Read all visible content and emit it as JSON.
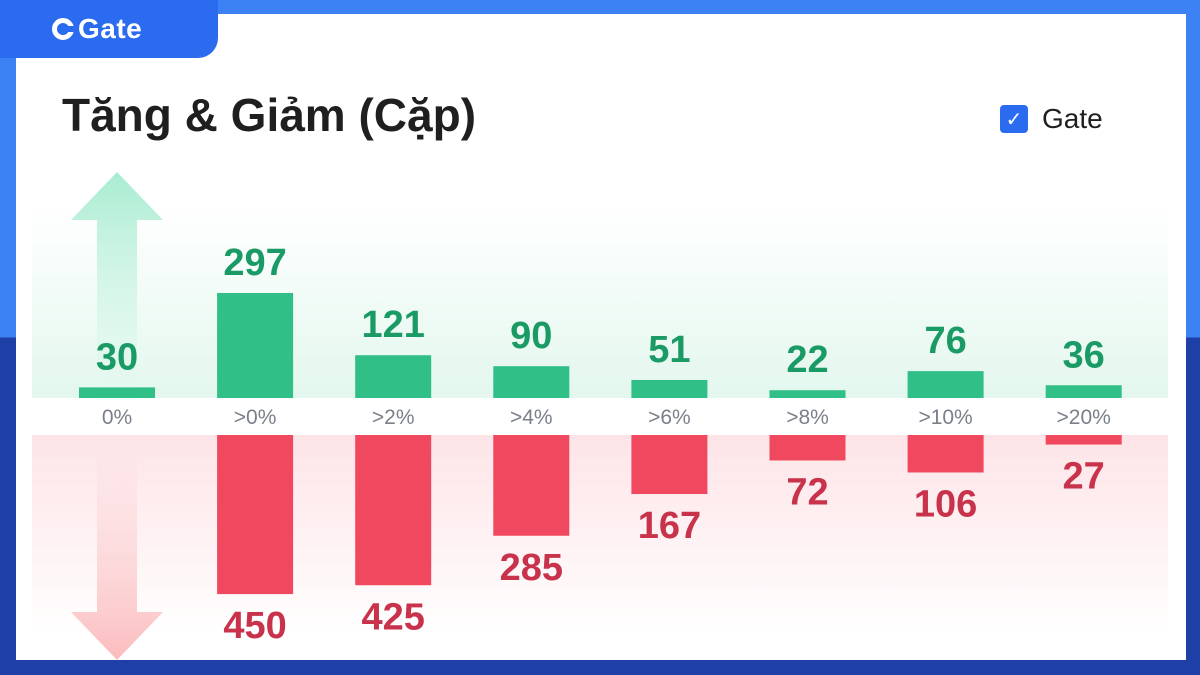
{
  "brand": {
    "name": "Gate"
  },
  "title": "Tăng & Giảm (Cặp)",
  "legend": {
    "label": "Gate",
    "checked": true
  },
  "colors": {
    "up": "#2fbf87",
    "up_text": "#1a9a64",
    "down": "#f0485e",
    "down_text": "#c8324b",
    "brand": "#2a6bf0"
  },
  "chart_data": {
    "type": "bar",
    "categories": [
      "0%",
      ">0%",
      ">2%",
      ">4%",
      ">6%",
      ">8%",
      ">10%",
      ">20%"
    ],
    "series": [
      {
        "values": [
          30,
          297,
          121,
          90,
          51,
          22,
          76,
          36
        ],
        "direction": "up"
      },
      {
        "values": [
          null,
          450,
          425,
          285,
          167,
          72,
          106,
          27
        ],
        "direction": "down"
      }
    ],
    "title": "Tăng & Giảm (Cặp)",
    "legend": [
      "Gate"
    ],
    "legend_position": "top-right"
  }
}
